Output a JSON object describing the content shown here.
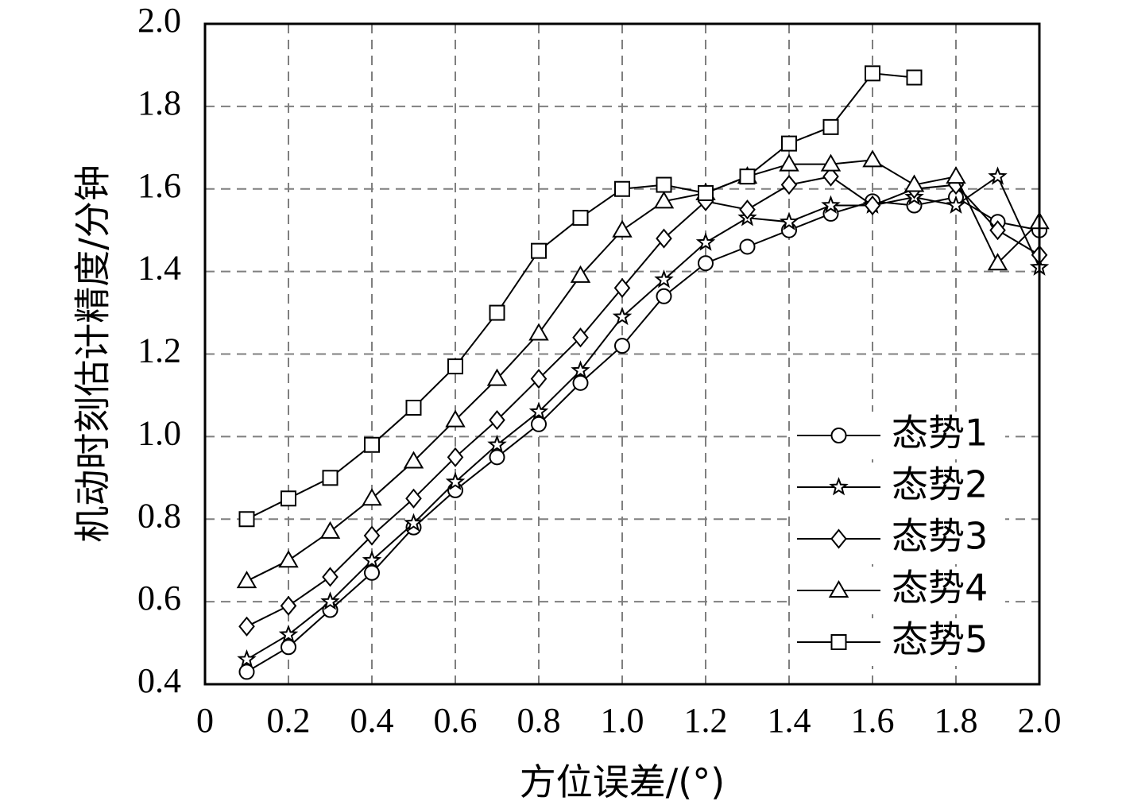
{
  "chart_data": {
    "type": "line",
    "xlabel": "方位误差/(°)",
    "ylabel": "机动时刻估计精度/分钟",
    "xlim": [
      0,
      2.0
    ],
    "ylim": [
      0.4,
      2.0
    ],
    "xticks": [
      "0",
      "0.2",
      "0.4",
      "0.6",
      "0.8",
      "1.0",
      "1.2",
      "1.4",
      "1.6",
      "1.8",
      "2.0"
    ],
    "yticks": [
      "0.4",
      "0.6",
      "0.8",
      "1.0",
      "1.2",
      "1.4",
      "1.6",
      "1.8",
      "2.0"
    ],
    "grid": true,
    "legend_position": "bottom-right",
    "series": [
      {
        "name": "态势1",
        "marker": "circle",
        "x": [
          0.1,
          0.2,
          0.3,
          0.4,
          0.5,
          0.6,
          0.7,
          0.8,
          0.9,
          1.0,
          1.1,
          1.2,
          1.3,
          1.4,
          1.5,
          1.6,
          1.7,
          1.8,
          1.9,
          2.0
        ],
        "values": [
          0.43,
          0.49,
          0.58,
          0.67,
          0.78,
          0.87,
          0.95,
          1.03,
          1.13,
          1.22,
          1.34,
          1.42,
          1.46,
          1.5,
          1.54,
          1.57,
          1.56,
          1.58,
          1.52,
          1.5
        ]
      },
      {
        "name": "态势2",
        "marker": "star",
        "x": [
          0.1,
          0.2,
          0.3,
          0.4,
          0.5,
          0.6,
          0.7,
          0.8,
          0.9,
          1.0,
          1.1,
          1.2,
          1.3,
          1.4,
          1.5,
          1.6,
          1.7,
          1.8,
          1.9,
          2.0
        ],
        "values": [
          0.46,
          0.52,
          0.6,
          0.7,
          0.79,
          0.89,
          0.98,
          1.06,
          1.16,
          1.29,
          1.38,
          1.47,
          1.53,
          1.52,
          1.56,
          1.56,
          1.58,
          1.56,
          1.63,
          1.41
        ]
      },
      {
        "name": "态势3",
        "marker": "diamond",
        "x": [
          0.1,
          0.2,
          0.3,
          0.4,
          0.5,
          0.6,
          0.7,
          0.8,
          0.9,
          1.0,
          1.1,
          1.2,
          1.3,
          1.4,
          1.5,
          1.6,
          1.7,
          1.8,
          1.9,
          2.0
        ],
        "values": [
          0.54,
          0.59,
          0.66,
          0.76,
          0.85,
          0.95,
          1.04,
          1.14,
          1.24,
          1.36,
          1.48,
          1.57,
          1.55,
          1.61,
          1.63,
          1.56,
          1.6,
          1.61,
          1.5,
          1.44
        ]
      },
      {
        "name": "态势4",
        "marker": "triangle",
        "x": [
          0.1,
          0.2,
          0.3,
          0.4,
          0.5,
          0.6,
          0.7,
          0.8,
          0.9,
          1.0,
          1.1,
          1.2,
          1.3,
          1.4,
          1.5,
          1.6,
          1.7,
          1.8,
          1.9,
          2.0
        ],
        "values": [
          0.65,
          0.7,
          0.77,
          0.85,
          0.94,
          1.04,
          1.14,
          1.25,
          1.39,
          1.5,
          1.57,
          1.59,
          1.63,
          1.66,
          1.66,
          1.67,
          1.61,
          1.63,
          1.42,
          1.52
        ]
      },
      {
        "name": "态势5",
        "marker": "square",
        "x": [
          0.1,
          0.2,
          0.3,
          0.4,
          0.5,
          0.6,
          0.7,
          0.8,
          0.9,
          1.0,
          1.1,
          1.2,
          1.3,
          1.4,
          1.5,
          1.6,
          1.7
        ],
        "values": [
          0.8,
          0.85,
          0.9,
          0.98,
          1.07,
          1.17,
          1.3,
          1.45,
          1.53,
          1.6,
          1.61,
          1.59,
          1.63,
          1.71,
          1.75,
          1.88,
          1.87
        ]
      }
    ]
  }
}
